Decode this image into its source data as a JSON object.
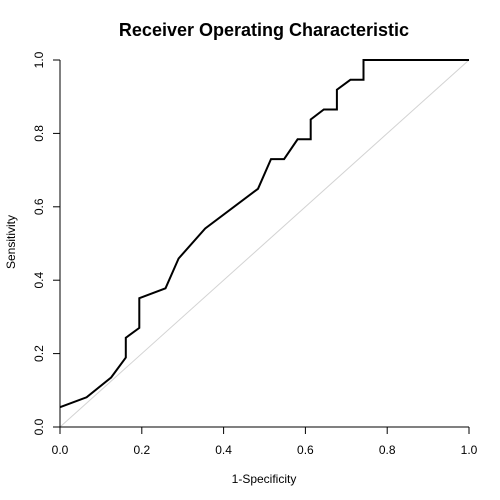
{
  "chart_data": {
    "type": "line",
    "title": "Receiver Operating Characteristic",
    "xlabel": "1-Specificity",
    "ylabel": "Sensitivity",
    "xlim": [
      0,
      1
    ],
    "ylim": [
      0,
      1
    ],
    "xticks": [
      "0.0",
      "0.2",
      "0.4",
      "0.6",
      "0.8",
      "1.0"
    ],
    "yticks": [
      "0.0",
      "0.2",
      "0.4",
      "0.6",
      "0.8",
      "1.0"
    ],
    "grid": false,
    "legend": "none",
    "series": [
      {
        "x": [
          0.0,
          0.065,
          0.125,
          0.161,
          0.161,
          0.194,
          0.194,
          0.258,
          0.29,
          0.355,
          0.484,
          0.516,
          0.548,
          0.581,
          0.613,
          0.613,
          0.645,
          0.677,
          0.677,
          0.71,
          0.742,
          0.742,
          1.0
        ],
        "y": [
          0.054,
          0.081,
          0.135,
          0.189,
          0.243,
          0.27,
          0.351,
          0.378,
          0.459,
          0.541,
          0.649,
          0.73,
          0.73,
          0.784,
          0.784,
          0.838,
          0.865,
          0.865,
          0.919,
          0.946,
          0.946,
          1.0,
          1.0
        ],
        "color": "#000000"
      }
    ],
    "reference_line": {
      "x": [
        0,
        1
      ],
      "y": [
        0,
        1
      ],
      "color": "#d3d3d3"
    }
  }
}
